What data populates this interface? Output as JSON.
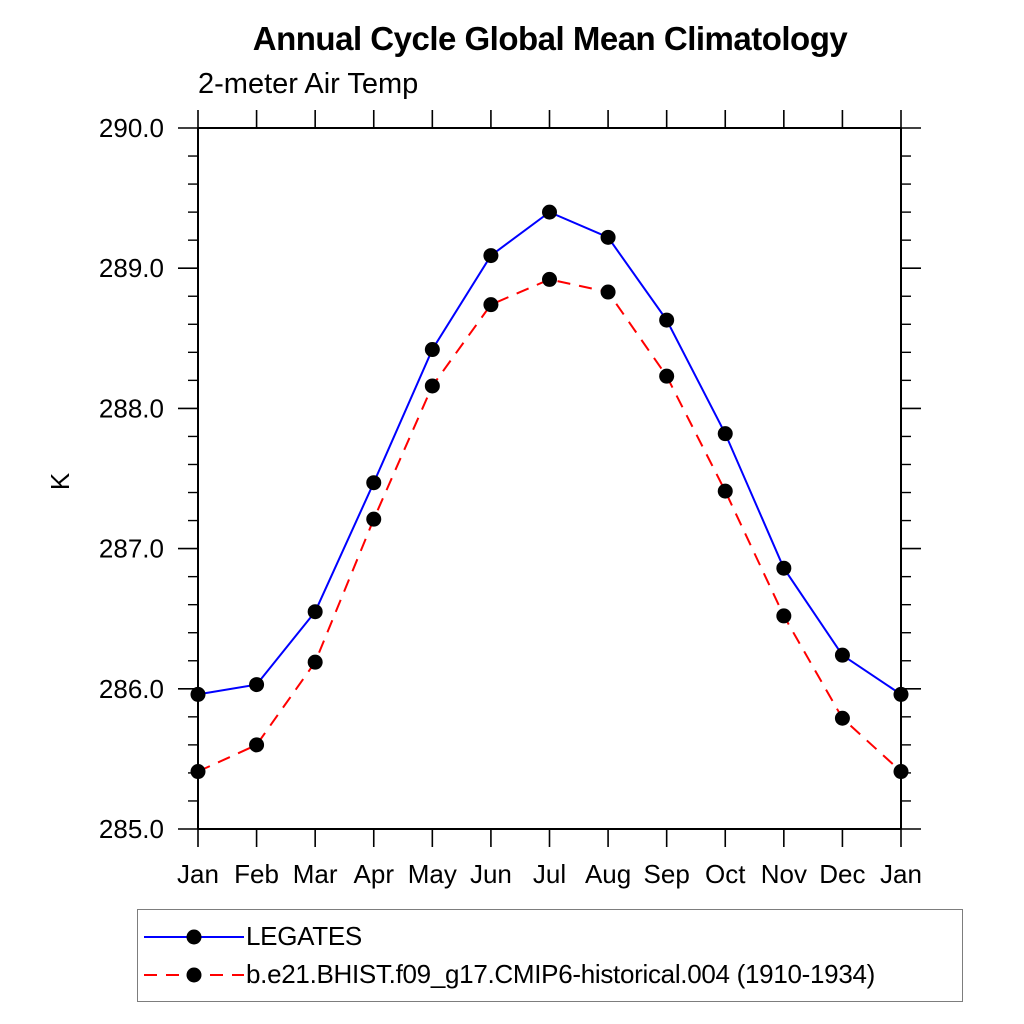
{
  "chart_data": {
    "type": "line",
    "title": "Annual Cycle Global Mean Climatology",
    "subtitle": "2-meter Air Temp",
    "ylabel": "K",
    "ylim": [
      285.0,
      290.0
    ],
    "ytick_step": 1.0,
    "ytick_minor_step": 0.2,
    "ytick_labels": [
      "285.0",
      "286.0",
      "287.0",
      "288.0",
      "289.0",
      "290.0"
    ],
    "categories": [
      "Jan",
      "Feb",
      "Mar",
      "Apr",
      "May",
      "Jun",
      "Jul",
      "Aug",
      "Sep",
      "Oct",
      "Nov",
      "Dec",
      "Jan"
    ],
    "series": [
      {
        "name": "LEGATES",
        "color": "#0000ff",
        "line_style": "solid",
        "marker": "filled-circle",
        "marker_color": "#000000",
        "values": [
          285.96,
          286.03,
          286.55,
          287.47,
          288.42,
          289.09,
          289.4,
          289.22,
          288.63,
          287.82,
          286.86,
          286.24,
          285.96
        ]
      },
      {
        "name": "b.e21.BHIST.f09_g17.CMIP6-historical.004 (1910-1934)",
        "color": "#ff0000",
        "line_style": "dashed",
        "marker": "filled-circle",
        "marker_color": "#000000",
        "values": [
          285.41,
          285.6,
          286.19,
          287.21,
          288.16,
          288.74,
          288.92,
          288.83,
          288.23,
          287.41,
          286.52,
          285.79,
          285.41
        ]
      }
    ],
    "grid": false,
    "legend_position": "bottom",
    "axis_color": "#000000"
  }
}
